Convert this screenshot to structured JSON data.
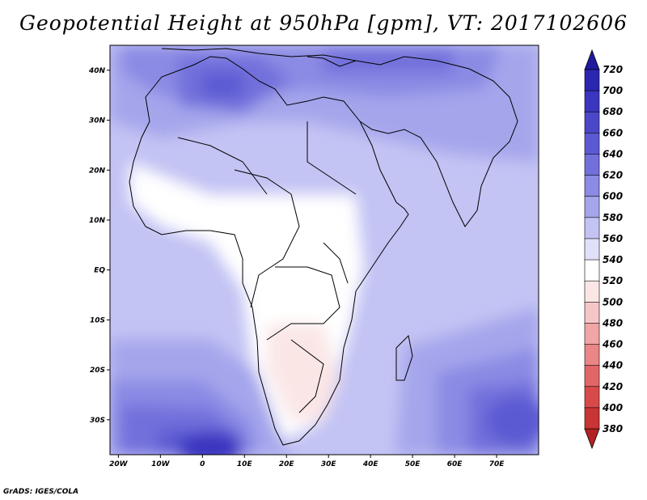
{
  "title": "Geopotential Height at 950hPa [gpm], VT: 2017102606",
  "credit": "GrADS: IGES/COLA",
  "map": {
    "lon_ticks": [
      "20W",
      "10W",
      "0",
      "10E",
      "20E",
      "30E",
      "40E",
      "50E",
      "60E",
      "70E"
    ],
    "lat_ticks": [
      "40N",
      "30N",
      "20N",
      "10N",
      "EQ",
      "10S",
      "20S",
      "30S"
    ],
    "lon_range": [
      -22,
      80
    ],
    "lat_range": [
      -37,
      45
    ]
  },
  "colorbar": {
    "levels": [
      "720",
      "700",
      "680",
      "660",
      "640",
      "620",
      "600",
      "580",
      "560",
      "540",
      "520",
      "500",
      "480",
      "460",
      "440",
      "420",
      "400",
      "380"
    ],
    "colors": [
      "#1f1a9e",
      "#2a26b0",
      "#3a36bf",
      "#4a47c8",
      "#5c5ad2",
      "#7270db",
      "#8b8ae4",
      "#a5a5ec",
      "#c3c3f4",
      "#e0e0fa",
      "#fbe6e6",
      "#f6c6c6",
      "#f0a6a6",
      "#ea8686",
      "#e26666",
      "#d84a4a",
      "#c93434",
      "#b32222"
    ],
    "bin_colors": [
      "#2a26b0",
      "#3a36bf",
      "#4a47c8",
      "#5c5ad2",
      "#7270db",
      "#8b8ae4",
      "#a5a5ec",
      "#c3c3f4",
      "#e0e0fa",
      "#ffffff",
      "#fbe6e6",
      "#f6c6c6",
      "#f0a6a6",
      "#ea8686",
      "#e26666",
      "#d84a4a",
      "#c93434"
    ]
  }
}
